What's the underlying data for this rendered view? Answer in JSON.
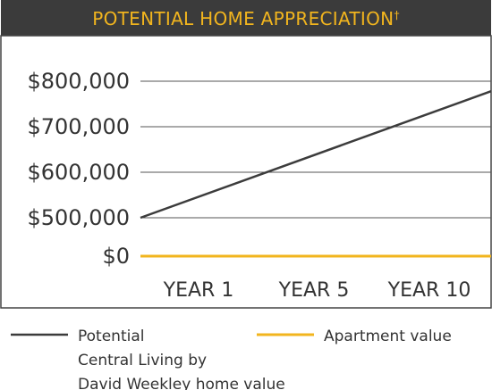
{
  "chart_data": {
    "type": "line",
    "title": "POTENTIAL HOME APPRECIATION",
    "title_mark": "†",
    "y_ticks": [
      "$800,000",
      "$700,000",
      "$600,000",
      "$500,000",
      "$0"
    ],
    "y_tick_values": [
      800000,
      700000,
      600000,
      500000,
      0
    ],
    "categories": [
      "YEAR 1",
      "YEAR 5",
      "YEAR 10"
    ],
    "x": [
      1,
      10
    ],
    "series": [
      {
        "name": "Potential Central Living by David Weekley home value",
        "legend_lines": [
          "Potential",
          "Central Living by",
          "David Weekley home value"
        ],
        "values": [
          500000,
          778000
        ],
        "color": "#3c3c3c"
      },
      {
        "name": "Apartment value",
        "legend_lines": [
          "Apartment value"
        ],
        "values": [
          0,
          0
        ],
        "color": "#f2b51e"
      }
    ],
    "grid": true,
    "y_axis_break": true,
    "legend_position": "bottom"
  },
  "colors": {
    "title_bar_bg": "#3b3b3b",
    "title_text": "#f2b51e",
    "frame_border": "#444444",
    "grid": "#555555",
    "tick_text": "#333333"
  }
}
